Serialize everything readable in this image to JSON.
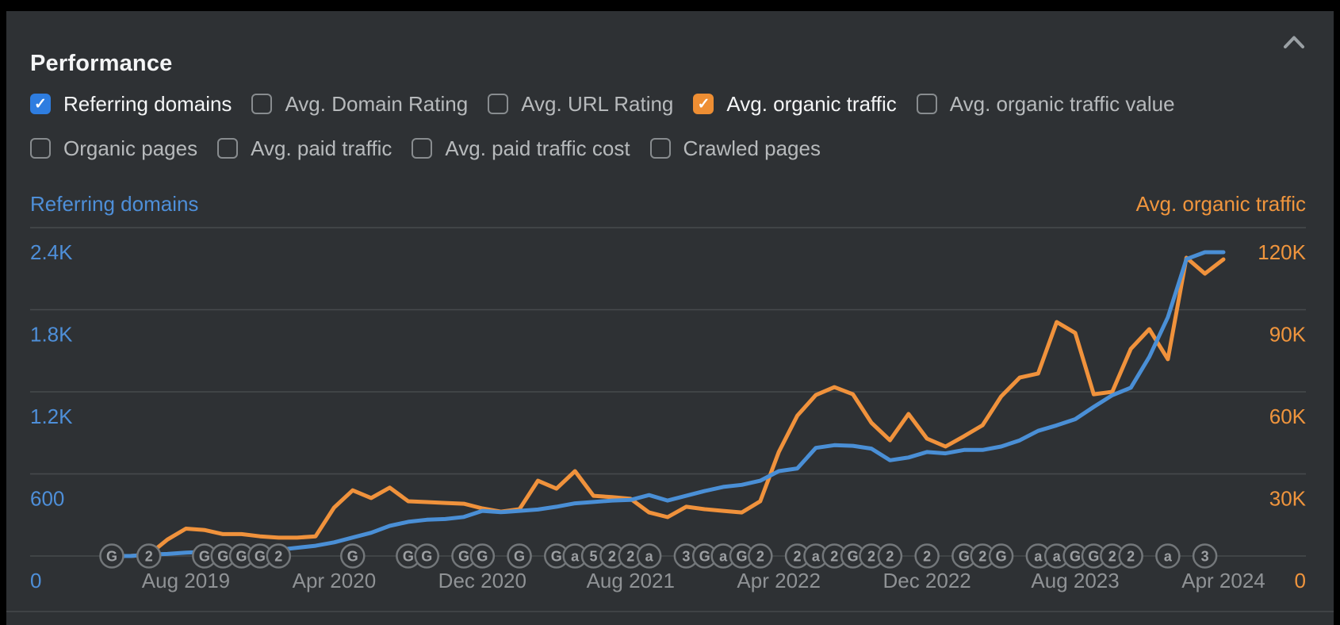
{
  "panel": {
    "title": "Performance"
  },
  "icons": {
    "collapse": "chevron-up",
    "checkbox_check": "✓"
  },
  "toggles": {
    "rows": [
      [
        {
          "label": "Referring domains",
          "checked": true,
          "accent": "#2e7de0"
        },
        {
          "label": "Avg. Domain Rating",
          "checked": false
        },
        {
          "label": "Avg. URL Rating",
          "checked": false
        },
        {
          "label": "Avg. organic traffic",
          "checked": true,
          "accent": "#ee8e33"
        },
        {
          "label": "Avg. organic traffic value",
          "checked": false
        }
      ],
      [
        {
          "label": "Organic pages",
          "checked": false
        },
        {
          "label": "Avg. paid traffic",
          "checked": false
        },
        {
          "label": "Avg. paid traffic cost",
          "checked": false
        },
        {
          "label": "Crawled pages",
          "checked": false
        }
      ]
    ]
  },
  "chart_data": {
    "type": "line",
    "title": "Performance",
    "grid": true,
    "left_axis": {
      "title": "Referring domains",
      "color": "#4e8fd9",
      "ticks": [
        "2.4K",
        "1.8K",
        "1.2K",
        "600",
        "0"
      ],
      "range": [
        0,
        2400
      ]
    },
    "right_axis": {
      "title": "Avg. organic traffic",
      "color": "#f0953d",
      "ticks": [
        "120K",
        "90K",
        "60K",
        "30K",
        "0"
      ],
      "range": [
        0,
        120000
      ]
    },
    "x_tick_labels": [
      "Aug 2019",
      "Apr 2020",
      "Dec 2020",
      "Aug 2021",
      "Apr 2022",
      "Dec 2022",
      "Aug 2023",
      "Apr 2024"
    ],
    "x_tick_month_indices": [
      4,
      12,
      20,
      28,
      36,
      44,
      52,
      60
    ],
    "x": [
      "Apr 2019",
      "May 2019",
      "Jun 2019",
      "Jul 2019",
      "Aug 2019",
      "Sep 2019",
      "Oct 2019",
      "Nov 2019",
      "Dec 2019",
      "Jan 2020",
      "Feb 2020",
      "Mar 2020",
      "Apr 2020",
      "May 2020",
      "Jun 2020",
      "Jul 2020",
      "Aug 2020",
      "Sep 2020",
      "Oct 2020",
      "Nov 2020",
      "Dec 2020",
      "Jan 2021",
      "Feb 2021",
      "Mar 2021",
      "Apr 2021",
      "May 2021",
      "Jun 2021",
      "Jul 2021",
      "Aug 2021",
      "Sep 2021",
      "Oct 2021",
      "Nov 2021",
      "Dec 2021",
      "Jan 2022",
      "Feb 2022",
      "Mar 2022",
      "Apr 2022",
      "May 2022",
      "Jun 2022",
      "Jul 2022",
      "Aug 2022",
      "Sep 2022",
      "Oct 2022",
      "Nov 2022",
      "Dec 2022",
      "Jan 2023",
      "Feb 2023",
      "Mar 2023",
      "Apr 2023",
      "May 2023",
      "Jun 2023",
      "Jul 2023",
      "Aug 2023",
      "Sep 2023",
      "Oct 2023",
      "Nov 2023",
      "Dec 2023",
      "Jan 2024",
      "Feb 2024",
      "Mar 2024",
      "Apr 2024"
    ],
    "series": [
      {
        "name": "Referring domains",
        "axis": "left",
        "color": "#4a8fd6",
        "values": [
          0,
          0,
          10,
          15,
          25,
          30,
          35,
          35,
          40,
          45,
          60,
          75,
          100,
          135,
          170,
          220,
          250,
          265,
          270,
          285,
          330,
          320,
          330,
          340,
          360,
          385,
          395,
          405,
          410,
          445,
          405,
          440,
          475,
          505,
          520,
          550,
          620,
          640,
          790,
          810,
          805,
          785,
          700,
          720,
          760,
          750,
          775,
          775,
          800,
          845,
          915,
          955,
          1000,
          1090,
          1175,
          1230,
          1455,
          1745,
          2170,
          2220,
          2220
        ]
      },
      {
        "name": "Avg. organic traffic",
        "axis": "right",
        "color": "#f0923c",
        "values": [
          0,
          0,
          500,
          6000,
          10000,
          9500,
          8000,
          8000,
          7200,
          6700,
          6700,
          7200,
          17700,
          24000,
          21200,
          25000,
          20000,
          19700,
          19400,
          19100,
          17400,
          16200,
          17100,
          27500,
          24600,
          31000,
          22000,
          21500,
          20900,
          15900,
          14200,
          18000,
          17100,
          16500,
          15900,
          20000,
          38000,
          51300,
          58800,
          61700,
          59100,
          48700,
          42300,
          51900,
          42900,
          40000,
          43800,
          47800,
          58300,
          65200,
          66700,
          85500,
          81500,
          59100,
          60000,
          75700,
          82900,
          71900,
          109000,
          103200,
          108400
        ]
      }
    ],
    "event_markers": [
      {
        "month_index": 0,
        "label": "G"
      },
      {
        "month_index": 2,
        "label": "2"
      },
      {
        "month_index": 5,
        "label": "G"
      },
      {
        "month_index": 6,
        "label": "G"
      },
      {
        "month_index": 7,
        "label": "G"
      },
      {
        "month_index": 8,
        "label": "G"
      },
      {
        "month_index": 9,
        "label": "2"
      },
      {
        "month_index": 13,
        "label": "G"
      },
      {
        "month_index": 16,
        "label": "G"
      },
      {
        "month_index": 17,
        "label": "G"
      },
      {
        "month_index": 19,
        "label": "G"
      },
      {
        "month_index": 20,
        "label": "G"
      },
      {
        "month_index": 22,
        "label": "G"
      },
      {
        "month_index": 24,
        "label": "G"
      },
      {
        "month_index": 25,
        "label": "a"
      },
      {
        "month_index": 26,
        "label": "5"
      },
      {
        "month_index": 27,
        "label": "2"
      },
      {
        "month_index": 28,
        "label": "2"
      },
      {
        "month_index": 29,
        "label": "a"
      },
      {
        "month_index": 31,
        "label": "3"
      },
      {
        "month_index": 32,
        "label": "G"
      },
      {
        "month_index": 33,
        "label": "a"
      },
      {
        "month_index": 34,
        "label": "G"
      },
      {
        "month_index": 35,
        "label": "2"
      },
      {
        "month_index": 37,
        "label": "2"
      },
      {
        "month_index": 38,
        "label": "a"
      },
      {
        "month_index": 39,
        "label": "2"
      },
      {
        "month_index": 40,
        "label": "G"
      },
      {
        "month_index": 41,
        "label": "2"
      },
      {
        "month_index": 42,
        "label": "2"
      },
      {
        "month_index": 44,
        "label": "2"
      },
      {
        "month_index": 46,
        "label": "G"
      },
      {
        "month_index": 47,
        "label": "2"
      },
      {
        "month_index": 48,
        "label": "G"
      },
      {
        "month_index": 50,
        "label": "a"
      },
      {
        "month_index": 51,
        "label": "a"
      },
      {
        "month_index": 52,
        "label": "G"
      },
      {
        "month_index": 53,
        "label": "G"
      },
      {
        "month_index": 54,
        "label": "2"
      },
      {
        "month_index": 55,
        "label": "2"
      },
      {
        "month_index": 57,
        "label": "a"
      },
      {
        "month_index": 59,
        "label": "3"
      }
    ]
  },
  "colors": {
    "background": "#000000",
    "panel": "#2e3134",
    "gridline": "#474a4d",
    "title_text": "#f4f5f6",
    "label_checked": "#f4f5f6",
    "label_unchecked": "#b7babc",
    "date_label": "#8f9295",
    "checkbox_border": "#888c8f",
    "event_circle_border": "#73777a",
    "event_circle_text": "#9da0a3",
    "divider": "#3f4245",
    "chevron": "#9aa0a4"
  }
}
